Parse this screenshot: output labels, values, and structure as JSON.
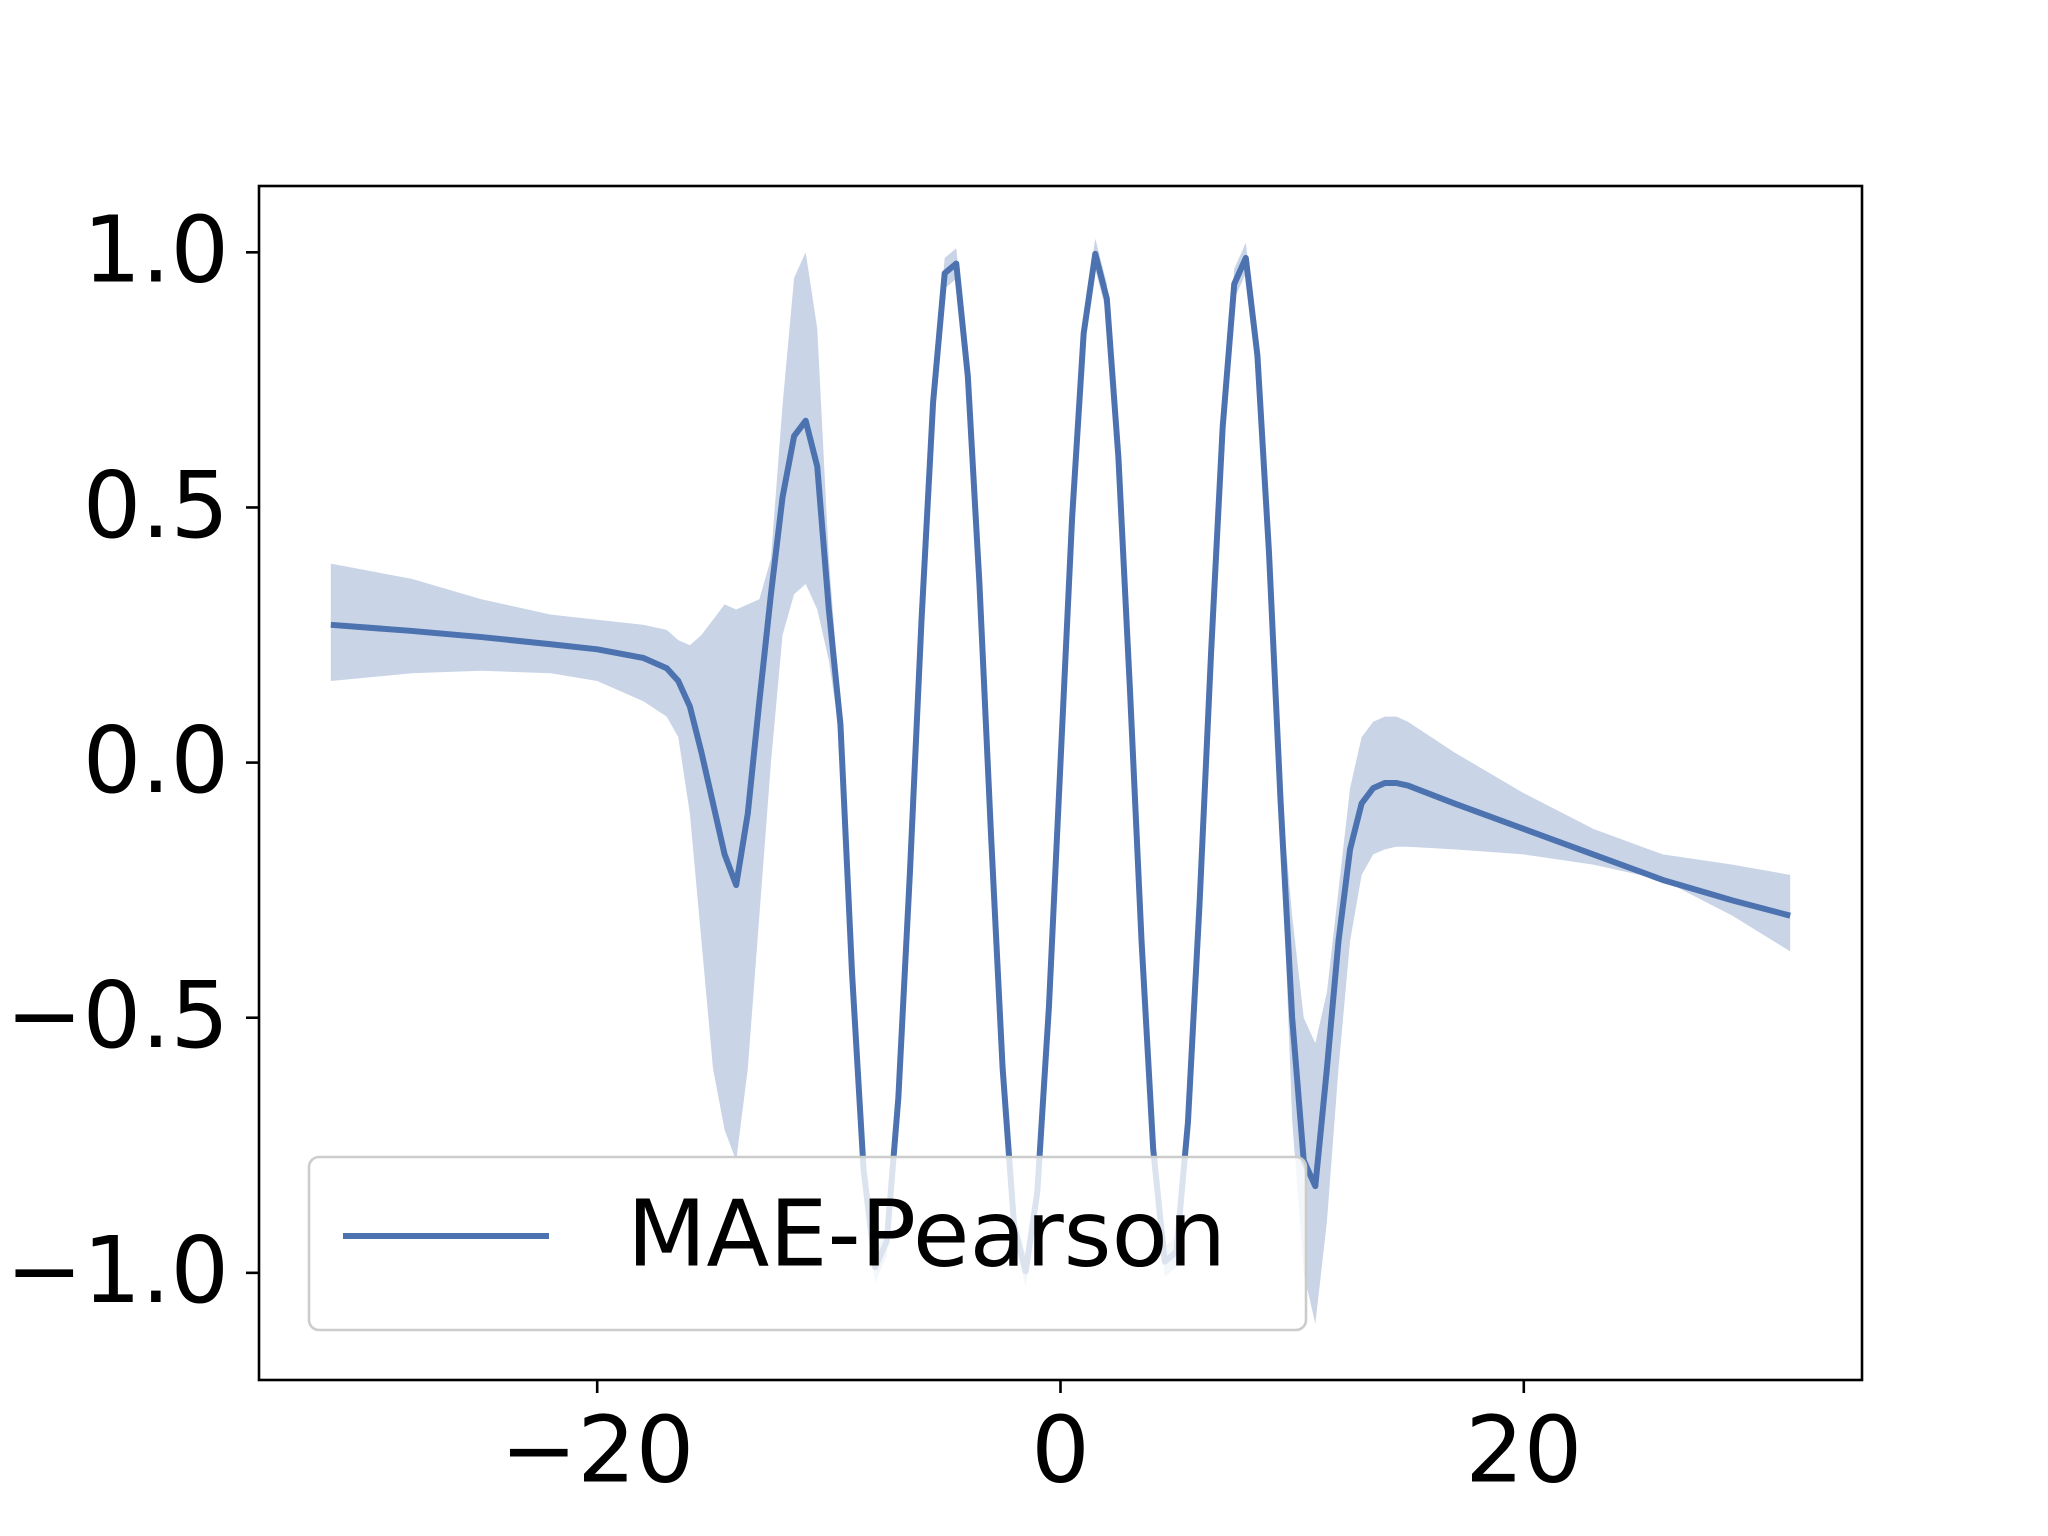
{
  "chart_data": {
    "type": "line",
    "x": [
      -31.5,
      -28,
      -25,
      -22,
      -20,
      -18,
      -17,
      -16.5,
      -16,
      -15.5,
      -15,
      -14.5,
      -14,
      -13.5,
      -13,
      -12.5,
      -12,
      -11.5,
      -11,
      -10.5,
      -10,
      -9.5,
      -9,
      -8.5,
      -8,
      -7.5,
      -7,
      -6.5,
      -6,
      -5.5,
      -5,
      -4.5,
      -4,
      -3.5,
      -3,
      -2.5,
      -2,
      -1.5,
      -1,
      -0.5,
      0,
      0.5,
      1,
      1.5,
      2,
      2.5,
      3,
      3.5,
      4,
      4.5,
      5,
      5.5,
      6,
      6.5,
      7,
      7.5,
      8,
      8.5,
      9,
      9.5,
      10,
      10.5,
      11,
      11.5,
      12,
      12.5,
      13,
      13.5,
      14,
      14.5,
      15,
      17,
      20,
      23,
      26,
      29,
      31.5
    ],
    "series": [
      {
        "name": "MAE-Pearson",
        "color": "#4c72b0",
        "values": [
          0.27,
          0.258,
          0.246,
          0.232,
          0.222,
          0.205,
          0.185,
          0.16,
          0.11,
          0.02,
          -0.08,
          -0.18,
          -0.24,
          -0.1,
          0.12,
          0.33,
          0.52,
          0.64,
          0.67,
          0.58,
          0.3,
          0.075,
          -0.412,
          -0.798,
          -0.989,
          -0.938,
          -0.657,
          -0.215,
          0.279,
          0.706,
          0.959,
          0.978,
          0.757,
          0.351,
          -0.141,
          -0.598,
          -0.909,
          -0.997,
          -0.841,
          -0.479,
          0,
          0.479,
          0.841,
          0.997,
          0.909,
          0.598,
          0.141,
          -0.351,
          -0.757,
          -0.978,
          -0.959,
          -0.706,
          -0.279,
          0.215,
          0.657,
          0.938,
          0.989,
          0.798,
          0.412,
          -0.075,
          -0.5,
          -0.78,
          -0.83,
          -0.6,
          -0.35,
          -0.17,
          -0.08,
          -0.05,
          -0.04,
          -0.04,
          -0.045,
          -0.08,
          -0.13,
          -0.18,
          -0.23,
          -0.27,
          -0.3
        ],
        "upper": [
          0.39,
          0.36,
          0.32,
          0.29,
          0.28,
          0.27,
          0.26,
          0.24,
          0.23,
          0.25,
          0.28,
          0.31,
          0.3,
          0.31,
          0.32,
          0.4,
          0.7,
          0.95,
          1.0,
          0.85,
          0.4,
          0.105,
          -0.382,
          -0.768,
          -0.959,
          -0.908,
          -0.627,
          -0.185,
          0.309,
          0.736,
          0.989,
          1.008,
          0.787,
          0.381,
          -0.111,
          -0.568,
          -0.879,
          -0.967,
          -0.811,
          -0.449,
          0.03,
          0.509,
          0.871,
          1.027,
          0.939,
          0.628,
          0.171,
          -0.321,
          -0.727,
          -0.948,
          -0.929,
          -0.676,
          -0.249,
          0.245,
          0.687,
          0.968,
          1.019,
          0.828,
          0.442,
          -0.045,
          -0.3,
          -0.5,
          -0.55,
          -0.45,
          -0.25,
          -0.05,
          0.05,
          0.08,
          0.09,
          0.09,
          0.08,
          0.02,
          -0.06,
          -0.13,
          -0.18,
          -0.2,
          -0.22
        ],
        "lower": [
          0.16,
          0.175,
          0.18,
          0.175,
          0.16,
          0.12,
          0.09,
          0.05,
          -0.1,
          -0.35,
          -0.6,
          -0.72,
          -0.78,
          -0.6,
          -0.3,
          0.0,
          0.25,
          0.33,
          0.35,
          0.3,
          0.2,
          0.045,
          -0.442,
          -0.828,
          -1.019,
          -0.968,
          -0.687,
          -0.245,
          0.249,
          0.676,
          0.929,
          0.948,
          0.727,
          0.321,
          -0.171,
          -0.628,
          -0.939,
          -1.027,
          -0.871,
          -0.509,
          -0.03,
          0.449,
          0.811,
          0.967,
          0.879,
          0.568,
          0.111,
          -0.381,
          -0.787,
          -1.008,
          -0.989,
          -0.736,
          -0.309,
          0.185,
          0.627,
          0.908,
          0.959,
          0.768,
          0.382,
          -0.105,
          -0.7,
          -1.0,
          -1.1,
          -0.9,
          -0.6,
          -0.35,
          -0.22,
          -0.18,
          -0.17,
          -0.165,
          -0.165,
          -0.17,
          -0.18,
          -0.2,
          -0.23,
          -0.3,
          -0.37
        ]
      }
    ],
    "xlim": [
      -34.6,
      34.6
    ],
    "ylim": [
      -1.21,
      1.13
    ],
    "xticks": [
      {
        "value": -20,
        "label": "−20"
      },
      0,
      20
    ],
    "yticks": [
      {
        "value": -1,
        "label": "−1.0"
      },
      {
        "value": -0.5,
        "label": "−0.5"
      },
      {
        "value": 0,
        "label": "0.0"
      },
      0.5,
      {
        "value": 1,
        "label": "1.0"
      }
    ],
    "legend": "lower left"
  }
}
